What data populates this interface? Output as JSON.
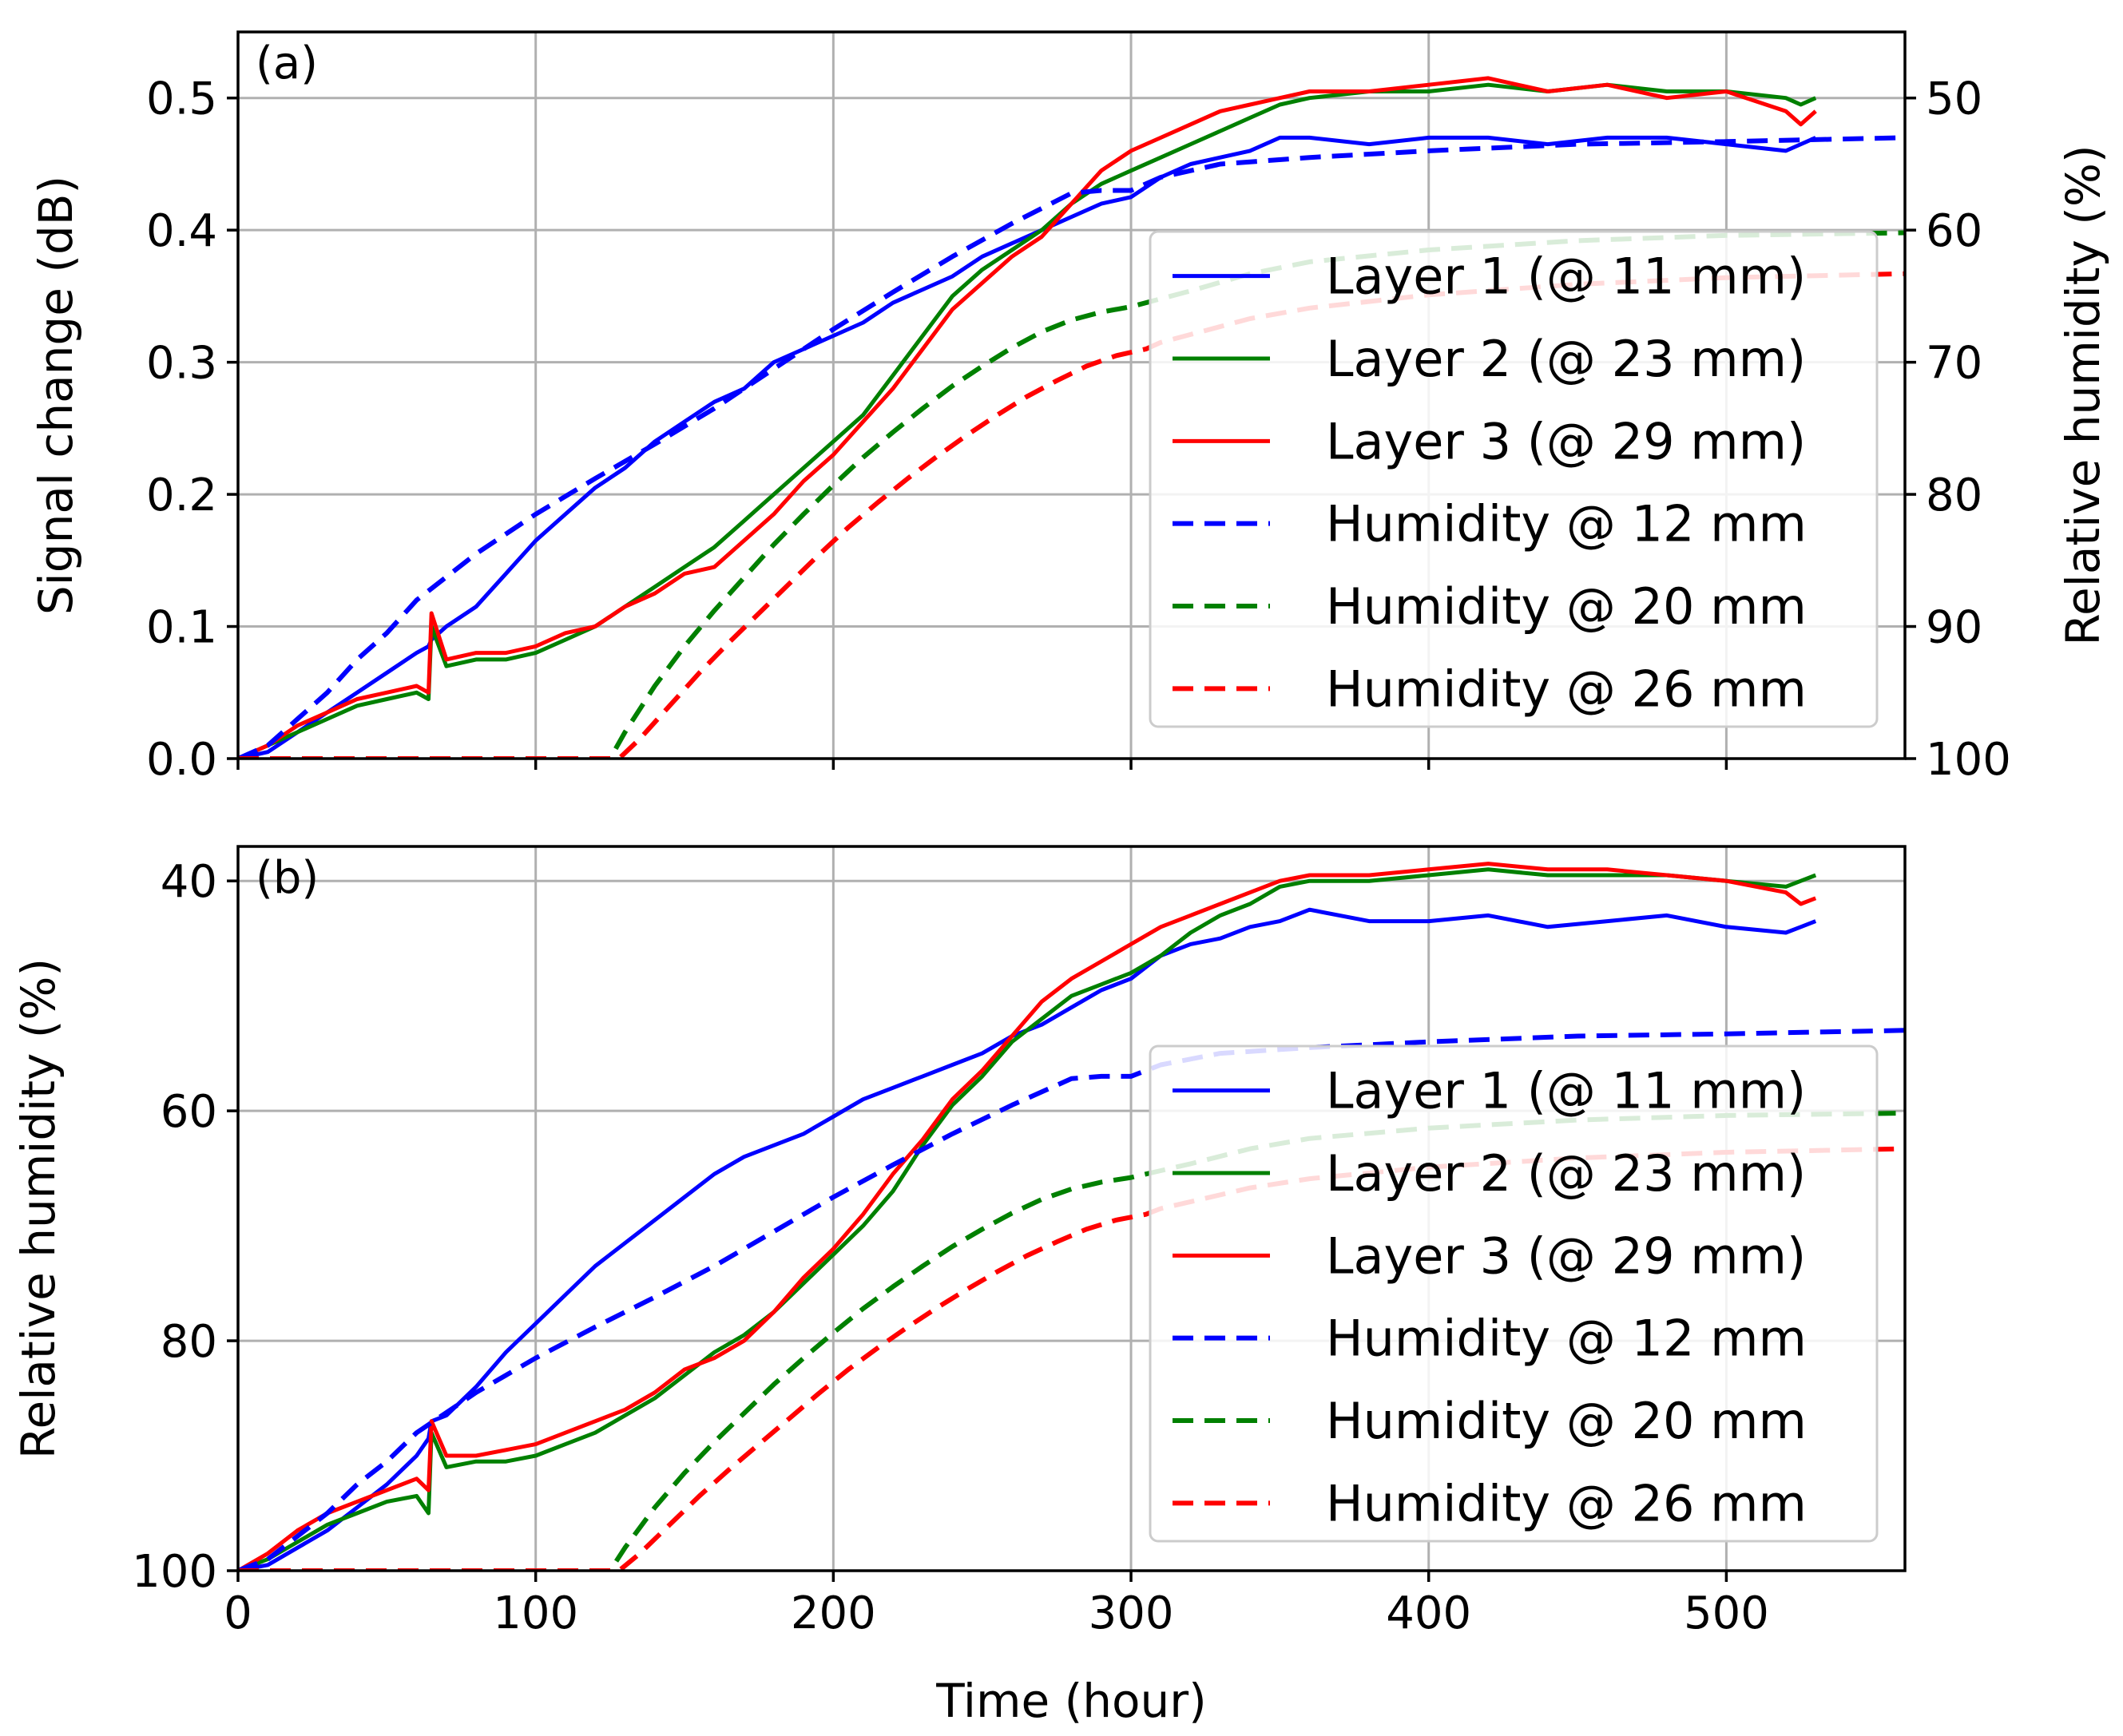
{
  "chart_data": [
    {
      "panel_label": "(a)",
      "type": "line",
      "xlim": [
        0,
        560
      ],
      "ylim": [
        0,
        0.55
      ],
      "y2lim": [
        100,
        45
      ],
      "ylabel": "Signal change (dB)",
      "y2label": "Relative humidity (%)",
      "yticks": [
        "0.0",
        "0.1",
        "0.2",
        "0.3",
        "0.4",
        "0.5"
      ],
      "y2ticks": [
        "100",
        "90",
        "80",
        "70",
        "60",
        "50"
      ],
      "legend_position": "center-right",
      "series": [
        {
          "name": "Layer 1 (@ 11 mm)",
          "color": "#0000ff",
          "style": "solid",
          "axis": "left",
          "x": [
            0,
            10,
            20,
            30,
            40,
            50,
            60,
            64,
            65,
            70,
            80,
            90,
            100,
            110,
            120,
            130,
            140,
            150,
            160,
            170,
            180,
            190,
            200,
            210,
            220,
            230,
            240,
            250,
            260,
            270,
            280,
            290,
            300,
            310,
            320,
            330,
            340,
            350,
            360,
            380,
            400,
            420,
            440,
            460,
            480,
            500,
            520,
            525,
            530
          ],
          "y": [
            0.0,
            0.005,
            0.02,
            0.035,
            0.05,
            0.065,
            0.08,
            0.085,
            0.09,
            0.1,
            0.115,
            0.14,
            0.165,
            0.185,
            0.205,
            0.22,
            0.24,
            0.255,
            0.27,
            0.28,
            0.3,
            0.31,
            0.32,
            0.33,
            0.345,
            0.355,
            0.365,
            0.38,
            0.39,
            0.4,
            0.41,
            0.42,
            0.425,
            0.44,
            0.45,
            0.455,
            0.46,
            0.47,
            0.47,
            0.465,
            0.47,
            0.47,
            0.465,
            0.47,
            0.47,
            0.465,
            0.46,
            0.465,
            0.47
          ]
        },
        {
          "name": "Layer 2 (@ 23 mm)",
          "color": "#008000",
          "style": "solid",
          "axis": "left",
          "x": [
            0,
            10,
            20,
            30,
            40,
            50,
            60,
            64,
            65,
            70,
            80,
            90,
            100,
            110,
            120,
            130,
            140,
            150,
            160,
            170,
            180,
            190,
            200,
            210,
            220,
            230,
            240,
            250,
            260,
            270,
            280,
            290,
            300,
            310,
            320,
            330,
            340,
            350,
            360,
            380,
            400,
            420,
            440,
            460,
            480,
            500,
            520,
            525,
            530
          ],
          "y": [
            0.0,
            0.01,
            0.02,
            0.03,
            0.04,
            0.045,
            0.05,
            0.045,
            0.1,
            0.07,
            0.075,
            0.075,
            0.08,
            0.09,
            0.1,
            0.115,
            0.13,
            0.145,
            0.16,
            0.18,
            0.2,
            0.22,
            0.24,
            0.26,
            0.29,
            0.32,
            0.35,
            0.37,
            0.385,
            0.4,
            0.42,
            0.435,
            0.445,
            0.455,
            0.465,
            0.475,
            0.485,
            0.495,
            0.5,
            0.505,
            0.505,
            0.51,
            0.505,
            0.51,
            0.505,
            0.505,
            0.5,
            0.495,
            0.5
          ]
        },
        {
          "name": "Layer 3 (@ 29 mm)",
          "color": "#ff0000",
          "style": "solid",
          "axis": "left",
          "x": [
            0,
            10,
            20,
            30,
            40,
            50,
            60,
            64,
            65,
            70,
            80,
            90,
            100,
            110,
            120,
            130,
            140,
            150,
            160,
            170,
            180,
            190,
            200,
            210,
            220,
            230,
            240,
            250,
            260,
            270,
            280,
            290,
            300,
            310,
            320,
            330,
            340,
            350,
            360,
            380,
            400,
            420,
            440,
            460,
            480,
            500,
            520,
            525,
            530
          ],
          "y": [
            0.0,
            0.01,
            0.025,
            0.035,
            0.045,
            0.05,
            0.055,
            0.05,
            0.11,
            0.075,
            0.08,
            0.08,
            0.085,
            0.095,
            0.1,
            0.115,
            0.125,
            0.14,
            0.145,
            0.165,
            0.185,
            0.21,
            0.23,
            0.255,
            0.28,
            0.31,
            0.34,
            0.36,
            0.38,
            0.395,
            0.42,
            0.445,
            0.46,
            0.47,
            0.48,
            0.49,
            0.495,
            0.5,
            0.505,
            0.505,
            0.51,
            0.515,
            0.505,
            0.51,
            0.5,
            0.505,
            0.49,
            0.48,
            0.49
          ]
        },
        {
          "name": "Humidity @ 12 mm",
          "color": "#0000ff",
          "style": "dashed",
          "axis": "right",
          "x": [
            0,
            10,
            20,
            30,
            40,
            50,
            60,
            80,
            100,
            120,
            140,
            160,
            180,
            200,
            220,
            240,
            260,
            280,
            290,
            300,
            310,
            330,
            360,
            400,
            450,
            500,
            560
          ],
          "y": [
            100,
            99,
            97,
            95,
            92.5,
            90.5,
            88,
            84.5,
            81.5,
            78.8,
            76.2,
            73.5,
            70.5,
            67.5,
            64.7,
            62,
            59.5,
            57.2,
            57,
            57,
            56,
            55,
            54.5,
            54,
            53.5,
            53.3,
            53
          ]
        },
        {
          "name": "Humidity @ 20 mm",
          "color": "#008000",
          "style": "dashed",
          "axis": "right",
          "x": [
            0,
            50,
            100,
            120,
            125,
            130,
            140,
            150,
            160,
            170,
            180,
            190,
            200,
            210,
            220,
            230,
            240,
            250,
            260,
            270,
            280,
            290,
            300,
            310,
            320,
            340,
            360,
            400,
            450,
            500,
            560
          ],
          "y": [
            100,
            100,
            100,
            100,
            100,
            98,
            94.5,
            91.5,
            88.8,
            86.3,
            83.8,
            81.5,
            79.3,
            77.2,
            75.3,
            73.5,
            71.8,
            70.3,
            68.9,
            67.7,
            66.8,
            66.2,
            65.8,
            65.2,
            64.6,
            63.3,
            62.4,
            61.5,
            60.8,
            60.4,
            60.2
          ]
        },
        {
          "name": "Humidity @ 26 mm",
          "color": "#ff0000",
          "style": "dashed",
          "axis": "right",
          "x": [
            0,
            50,
            100,
            120,
            128,
            135,
            145,
            155,
            165,
            175,
            185,
            195,
            205,
            215,
            225,
            235,
            245,
            255,
            265,
            275,
            285,
            295,
            305,
            310,
            320,
            340,
            360,
            400,
            450,
            500,
            560
          ],
          "y": [
            100,
            100,
            100,
            100,
            100,
            98.5,
            96,
            93.5,
            91.2,
            89,
            86.8,
            84.6,
            82.5,
            80.6,
            78.8,
            77.1,
            75.5,
            74,
            72.6,
            71.4,
            70.3,
            69.5,
            69,
            68.5,
            67.9,
            66.7,
            65.9,
            64.9,
            64.1,
            63.6,
            63.3
          ]
        }
      ]
    },
    {
      "panel_label": "(b)",
      "type": "line",
      "xlim": [
        0,
        560
      ],
      "ylim": [
        100,
        37
      ],
      "xlabel": "Time (hour)",
      "ylabel": "Relative humidity (%)",
      "xticks": [
        "0",
        "100",
        "200",
        "300",
        "400",
        "500"
      ],
      "yticks": [
        "40",
        "60",
        "80",
        "100"
      ],
      "legend_position": "center-right",
      "series": [
        {
          "name": "Layer 1 (@ 11 mm)",
          "color": "#0000ff",
          "style": "solid",
          "x": [
            0,
            10,
            20,
            30,
            40,
            50,
            60,
            64,
            65,
            70,
            80,
            90,
            100,
            110,
            120,
            130,
            140,
            150,
            160,
            170,
            180,
            190,
            200,
            210,
            220,
            230,
            240,
            250,
            260,
            270,
            280,
            290,
            300,
            310,
            320,
            330,
            340,
            350,
            360,
            380,
            400,
            420,
            440,
            460,
            480,
            500,
            520,
            525,
            530
          ],
          "y": [
            100,
            99.5,
            98,
            96.5,
            94.5,
            92.5,
            90,
            88.5,
            87,
            86.5,
            84,
            81,
            78.5,
            76,
            73.5,
            71.5,
            69.5,
            67.5,
            65.5,
            64,
            63,
            62,
            60.5,
            59,
            58,
            57,
            56,
            55,
            53.5,
            52.5,
            51,
            49.5,
            48.5,
            46.5,
            45.5,
            45,
            44,
            43.5,
            42.5,
            43.5,
            43.5,
            43,
            44,
            43.5,
            43,
            44,
            44.5,
            44,
            43.5
          ]
        },
        {
          "name": "Layer 2 (@ 23 mm)",
          "color": "#008000",
          "style": "solid",
          "x": [
            0,
            10,
            20,
            30,
            40,
            50,
            60,
            64,
            65,
            70,
            80,
            90,
            100,
            110,
            120,
            130,
            140,
            150,
            160,
            170,
            180,
            190,
            200,
            210,
            220,
            230,
            240,
            250,
            260,
            270,
            280,
            290,
            300,
            310,
            320,
            330,
            340,
            350,
            360,
            380,
            400,
            420,
            440,
            460,
            480,
            500,
            520,
            525,
            530
          ],
          "y": [
            100,
            99,
            97.5,
            96,
            95,
            94,
            93.5,
            95,
            88,
            91,
            90.5,
            90.5,
            90,
            89,
            88,
            86.5,
            85,
            83,
            81,
            79.5,
            77.5,
            75,
            72.5,
            70,
            67,
            63,
            59.5,
            57,
            54,
            52,
            50,
            49,
            48,
            46.5,
            44.5,
            43,
            42,
            40.5,
            40,
            40,
            39.5,
            39,
            39.5,
            39.5,
            39.5,
            40,
            40.5,
            40,
            39.5
          ]
        },
        {
          "name": "Layer 3 (@ 29 mm)",
          "color": "#ff0000",
          "style": "solid",
          "x": [
            0,
            10,
            20,
            30,
            40,
            50,
            60,
            64,
            65,
            70,
            80,
            90,
            100,
            110,
            120,
            130,
            140,
            150,
            160,
            170,
            180,
            190,
            200,
            210,
            220,
            230,
            240,
            250,
            260,
            270,
            280,
            290,
            300,
            310,
            320,
            330,
            340,
            350,
            360,
            380,
            400,
            420,
            440,
            460,
            480,
            500,
            520,
            525,
            530
          ],
          "y": [
            100,
            98.5,
            96.5,
            95,
            94,
            93,
            92,
            93,
            87,
            90,
            90,
            89.5,
            89,
            88,
            87,
            86,
            84.5,
            82.5,
            81.5,
            80,
            77.5,
            74.5,
            72,
            69,
            65.5,
            62.5,
            59,
            56.5,
            53.5,
            50.5,
            48.5,
            47,
            45.5,
            44,
            43,
            42,
            41,
            40,
            39.5,
            39.5,
            39,
            38.5,
            39,
            39,
            39.5,
            40,
            41,
            42,
            41.5
          ]
        },
        {
          "name": "Humidity @ 12 mm",
          "color": "#0000ff",
          "style": "dashed",
          "x": [
            0,
            10,
            20,
            30,
            40,
            50,
            60,
            80,
            100,
            120,
            140,
            160,
            180,
            200,
            220,
            240,
            260,
            280,
            290,
            300,
            310,
            330,
            360,
            400,
            450,
            500,
            560
          ],
          "y": [
            100,
            99,
            97,
            95,
            92.5,
            90.5,
            88,
            84.5,
            81.5,
            78.8,
            76.2,
            73.5,
            70.5,
            67.5,
            64.7,
            62,
            59.5,
            57.2,
            57,
            57,
            56,
            55,
            54.5,
            54,
            53.5,
            53.3,
            53
          ]
        },
        {
          "name": "Humidity @ 20 mm",
          "color": "#008000",
          "style": "dashed",
          "x": [
            0,
            50,
            100,
            120,
            125,
            130,
            140,
            150,
            160,
            170,
            180,
            190,
            200,
            210,
            220,
            230,
            240,
            250,
            260,
            270,
            280,
            290,
            300,
            310,
            320,
            340,
            360,
            400,
            450,
            500,
            560
          ],
          "y": [
            100,
            100,
            100,
            100,
            100,
            98,
            94.5,
            91.5,
            88.8,
            86.3,
            83.8,
            81.5,
            79.3,
            77.2,
            75.3,
            73.5,
            71.8,
            70.3,
            68.9,
            67.7,
            66.8,
            66.2,
            65.8,
            65.2,
            64.6,
            63.3,
            62.4,
            61.5,
            60.8,
            60.4,
            60.2
          ]
        },
        {
          "name": "Humidity @ 26 mm",
          "color": "#ff0000",
          "style": "dashed",
          "x": [
            0,
            50,
            100,
            120,
            128,
            135,
            145,
            155,
            165,
            175,
            185,
            195,
            205,
            215,
            225,
            235,
            245,
            255,
            265,
            275,
            285,
            295,
            305,
            310,
            320,
            340,
            360,
            400,
            450,
            500,
            560
          ],
          "y": [
            100,
            100,
            100,
            100,
            100,
            98.5,
            96,
            93.5,
            91.2,
            89,
            86.8,
            84.6,
            82.5,
            80.6,
            78.8,
            77.1,
            75.5,
            74,
            72.6,
            71.4,
            70.3,
            69.5,
            69,
            68.5,
            67.9,
            66.7,
            65.9,
            64.9,
            64.1,
            63.6,
            63.3
          ]
        }
      ]
    }
  ]
}
